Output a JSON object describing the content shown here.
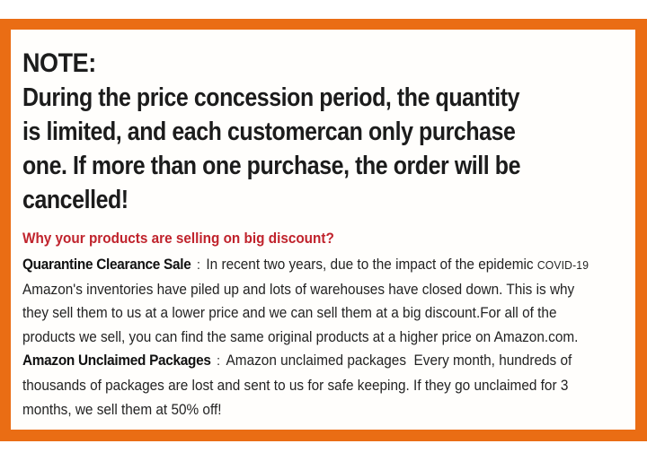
{
  "frame": {
    "border_color": "#EA6D14",
    "inner_background": "#FFFEFC"
  },
  "note": {
    "heading": "NOTE:",
    "lines": [
      "During the price concession period, the quantity",
      "is limited, and each customercan only purchase",
      "one. If more than one purchase, the order will be",
      "cancelled!"
    ]
  },
  "discount_section": {
    "heading": "Why your products are selling on big discount?",
    "heading_color": "#C0232C",
    "quarantine": {
      "label": "Quarantine Clearance Sale",
      "separator": ":",
      "line1_text": "In recent two years, due to the impact of the epidemic ",
      "covid_tag": "COVID-19",
      "lines": [
        "Amazon's inventories have piled up and lots of warehouses have closed down. This is why",
        "they sell them to us at a lower price and we can sell them at a big discount.For all of the",
        "products we sell, you can find the same original products at a higher price on Amazon.com."
      ]
    },
    "unclaimed": {
      "label": "Amazon Unclaimed Packages",
      "separator": ":",
      "line1_text": "Amazon unclaimed packages  Every month, hundreds of",
      "lines": [
        "thousands of packages are lost and sent to us for safe keeping. If they go unclaimed for 3",
        "months, we sell them at 50% off!"
      ]
    }
  }
}
